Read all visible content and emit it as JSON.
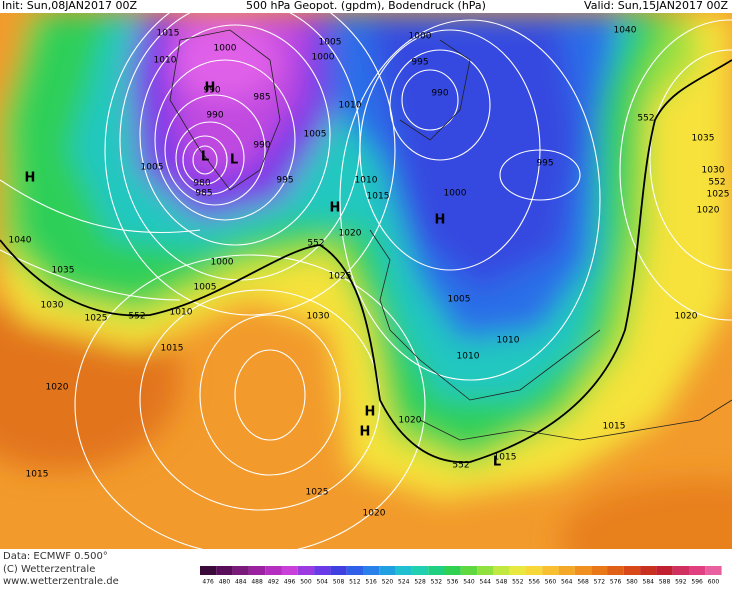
{
  "header": {
    "init": "Init: Sun,08JAN2017 00Z",
    "title": "500 hPa Geopot. (gpdm), Bodendruck (hPa)",
    "valid": "Valid: Sun,15JAN2017 00Z"
  },
  "isobar_labels": [
    "1015",
    "1010",
    "1000",
    "1005",
    "1000",
    "1000",
    "1040",
    "995",
    "990",
    "990",
    "985",
    "990",
    "990",
    "1010",
    "1005",
    "1005",
    "995",
    "980",
    "985",
    "1010",
    "1015",
    "995",
    "1000",
    "1035",
    "1030",
    "552",
    "1025",
    "1020",
    "552",
    "1040",
    "1020",
    "552",
    "1000",
    "1035",
    "1025",
    "1005",
    "1005",
    "1030",
    "1025",
    "552",
    "1010",
    "1030",
    "1020",
    "1015",
    "1010",
    "1010",
    "1020",
    "1020",
    "1015",
    "552",
    "1015",
    "1015",
    "1025",
    "1020"
  ],
  "pressure_centers": [
    "H",
    "H",
    "L",
    "L",
    "H",
    "H",
    "H",
    "H",
    "L"
  ],
  "footer": {
    "data": "Data: ECMWF  0.500°",
    "copyright": "(C) Wetterzentrale",
    "url": "www.wetterzentrale.de"
  },
  "colorbar": {
    "ticks": [
      476,
      480,
      484,
      488,
      492,
      496,
      500,
      504,
      508,
      512,
      516,
      520,
      524,
      528,
      532,
      536,
      540,
      544,
      548,
      552,
      556,
      560,
      564,
      568,
      572,
      576,
      580,
      584,
      588,
      592,
      596,
      600
    ]
  }
}
